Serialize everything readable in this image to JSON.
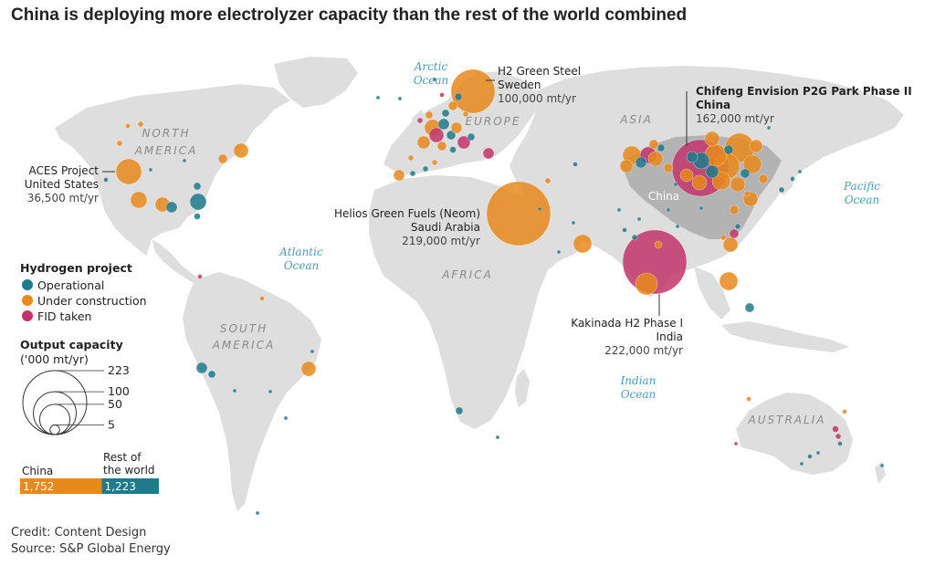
{
  "title": "China is deploying more electrolyzer capacity than the rest of the world combined",
  "colors": {
    "operational": "#1f7a8c",
    "under_construction": "#e8891c",
    "fid_taken": "#c2356b",
    "land": "#dedede",
    "china_land": "#b3b3b3",
    "ocean": "#ffffff"
  },
  "ocean_labels": {
    "arctic": [
      "Arctic",
      "Ocean"
    ],
    "atlantic": [
      "Atlantic",
      "Ocean"
    ],
    "pacific": [
      "Pacific",
      "Ocean"
    ],
    "indian": [
      "Indian",
      "Ocean"
    ]
  },
  "region_labels": {
    "north_america": [
      "NORTH",
      "AMERICA"
    ],
    "south_america": [
      "SOUTH",
      "AMERICA"
    ],
    "europe": "EUROPE",
    "asia": "ASIA",
    "africa": "AFRICA",
    "australia": "AUSTRALIA",
    "china": "China"
  },
  "callouts": {
    "h2_green_steel": [
      "H2 Green Steel",
      "Sweden",
      "100,000 mt/yr"
    ],
    "chifeng": [
      "Chifeng Envision P2G Park Phase II",
      "China",
      "162,000 mt/yr"
    ],
    "aces": [
      "ACES Project",
      "United States",
      "36,500 mt/yr"
    ],
    "helios": [
      "Helios Green Fuels (Neom)",
      "Saudi Arabia",
      "219,000 mt/yr"
    ],
    "kakinada": [
      "Kakinada H2 Phase I",
      "India",
      "222,000 mt/yr"
    ]
  },
  "legend": {
    "project_title": "Hydrogen project",
    "operational": "Operational",
    "under_construction": "Under construction",
    "fid_taken": "FID taken",
    "capacity_title": "Output capacity",
    "capacity_unit": "('000 mt/yr)",
    "sizes": [
      {
        "value": 223,
        "label": "223"
      },
      {
        "value": 100,
        "label": "100"
      },
      {
        "value": 50,
        "label": "50"
      },
      {
        "value": 5,
        "label": "5"
      }
    ]
  },
  "totals": {
    "china_label": "China",
    "row_label": [
      "Rest of",
      "the world"
    ],
    "china_value": 1752,
    "china_value_label": "1,752",
    "row_value": 1223,
    "row_value_label": "1,223"
  },
  "credit": "Credit: Content Design",
  "source": "Source: S&P Global Energy"
}
